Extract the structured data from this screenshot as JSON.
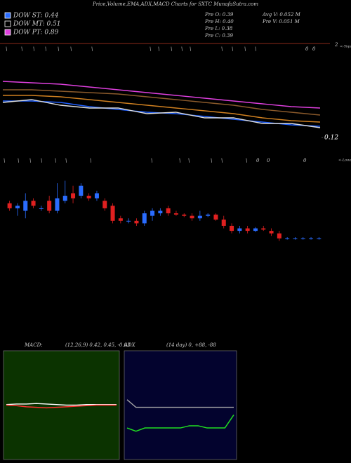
{
  "header": {
    "title": "Price,Volume,EMA,ADX,MACD Charts for SXTC MunafaSutra.com",
    "legend": [
      {
        "label": "DOW ST: 0.44",
        "color": "#2a6cff"
      },
      {
        "label": "DOW MT: 0.51",
        "color": "#000000"
      },
      {
        "label": "DOW PT: 0.89",
        "color": "#e040e0"
      }
    ],
    "stats": [
      "Pre O: 0.39",
      "Pre H: 0.40",
      "Pre L: 0.38",
      "Pre C: 0.39",
      "Avg V: 0.052 M",
      "Pre V: 0.051 M"
    ],
    "top_signals": [
      "\\",
      "\\",
      "\\",
      "\\",
      "\\",
      "\\",
      "\\",
      "\\",
      "\\",
      "\\",
      "\\",
      "\\",
      "\\",
      "\\",
      "\\",
      "\\",
      "0",
      "0"
    ],
    "top_tag": "2",
    "top_label": "<-Tops",
    "low_signals": [
      "\\",
      "\\",
      "\\",
      "\\",
      "\\",
      "\\",
      "\\",
      "\\",
      "\\",
      "\\",
      "\\",
      "\\",
      "\\",
      "0",
      "0",
      "0"
    ],
    "low_label": "<-Lows"
  },
  "chart_data": [
    {
      "type": "line",
      "ylim": [
        0.1,
        0.6
      ],
      "yticks": [
        0.12
      ],
      "series": [
        {
          "color": "#e040e0",
          "values": [
            0.52,
            0.51,
            0.5,
            0.48,
            0.46,
            0.44,
            0.42,
            0.4,
            0.38,
            0.36,
            0.34,
            0.33
          ]
        },
        {
          "color": "#8b5a2b",
          "values": [
            0.46,
            0.46,
            0.45,
            0.44,
            0.43,
            0.41,
            0.39,
            0.37,
            0.35,
            0.32,
            0.3,
            0.28
          ]
        },
        {
          "color": "#d08020",
          "values": [
            0.42,
            0.42,
            0.41,
            0.39,
            0.37,
            0.35,
            0.33,
            0.31,
            0.29,
            0.26,
            0.24,
            0.23
          ]
        },
        {
          "color": "#2060ff",
          "values": [
            0.38,
            0.38,
            0.37,
            0.34,
            0.32,
            0.3,
            0.29,
            0.27,
            0.25,
            0.23,
            0.21,
            0.2
          ]
        },
        {
          "color": "#dddddd",
          "values": [
            0.37,
            0.39,
            0.35,
            0.33,
            0.33,
            0.29,
            0.3,
            0.26,
            0.26,
            0.22,
            0.22,
            0.19
          ]
        }
      ]
    },
    {
      "type": "candlestick",
      "ylim": [
        0.3,
        0.7
      ],
      "up_color": "#2a6cff",
      "down_color": "#e02020",
      "open": [
        0.53,
        0.51,
        0.5,
        0.54,
        0.51,
        0.54,
        0.5,
        0.54,
        0.57,
        0.56,
        0.56,
        0.55,
        0.54,
        0.52,
        0.47,
        0.46,
        0.46,
        0.45,
        0.48,
        0.49,
        0.51,
        0.49,
        0.485,
        0.48,
        0.47,
        0.48,
        0.485,
        0.465,
        0.44,
        0.42,
        0.43,
        0.42,
        0.43,
        0.42,
        0.41,
        0.39,
        0.39,
        0.39,
        0.39,
        0.39
      ],
      "high": [
        0.54,
        0.53,
        0.57,
        0.55,
        0.52,
        0.56,
        0.61,
        0.62,
        0.6,
        0.61,
        0.57,
        0.58,
        0.55,
        0.53,
        0.48,
        0.47,
        0.47,
        0.5,
        0.51,
        0.51,
        0.52,
        0.5,
        0.49,
        0.49,
        0.5,
        0.49,
        0.49,
        0.48,
        0.45,
        0.44,
        0.44,
        0.435,
        0.44,
        0.43,
        0.42,
        0.395,
        0.395,
        0.395,
        0.395,
        0.395
      ],
      "low": [
        0.5,
        0.48,
        0.47,
        0.51,
        0.5,
        0.49,
        0.49,
        0.53,
        0.53,
        0.55,
        0.54,
        0.54,
        0.5,
        0.45,
        0.45,
        0.45,
        0.44,
        0.44,
        0.46,
        0.48,
        0.48,
        0.48,
        0.475,
        0.46,
        0.46,
        0.475,
        0.46,
        0.43,
        0.41,
        0.41,
        0.41,
        0.415,
        0.42,
        0.4,
        0.38,
        0.385,
        0.385,
        0.385,
        0.385,
        0.385
      ],
      "close": [
        0.51,
        0.52,
        0.54,
        0.52,
        0.51,
        0.5,
        0.55,
        0.56,
        0.55,
        0.6,
        0.55,
        0.57,
        0.51,
        0.46,
        0.46,
        0.46,
        0.45,
        0.49,
        0.5,
        0.5,
        0.49,
        0.485,
        0.48,
        0.47,
        0.48,
        0.485,
        0.465,
        0.44,
        0.42,
        0.43,
        0.42,
        0.43,
        0.425,
        0.41,
        0.39,
        0.39,
        0.39,
        0.39,
        0.39,
        0.39
      ]
    },
    {
      "type": "line",
      "title": "MACD:",
      "subtitle": "(12,26,9) 0.42, 0.45, -0.03",
      "ylim": [
        -1,
        1
      ],
      "background": "#0b3300",
      "series": [
        {
          "color": "#ffffff",
          "values": [
            0.01,
            0.02,
            0.02,
            0.03,
            0.02,
            0.01,
            0.0,
            0.0,
            0.01,
            0.01,
            0.01,
            0.01
          ]
        },
        {
          "color": "#ff3030",
          "values": [
            0.0,
            -0.01,
            -0.03,
            -0.04,
            -0.05,
            -0.04,
            -0.03,
            -0.02,
            -0.01,
            0.0,
            0.0,
            0.0
          ]
        }
      ]
    },
    {
      "type": "line",
      "title": "ADX",
      "subtitle": "(14 day) 0, +88, -88",
      "ylim": [
        0,
        100
      ],
      "background": "#03032e",
      "series": [
        {
          "color": "#aaaaaa",
          "values": [
            55,
            48,
            48,
            48,
            48,
            48,
            48,
            48,
            48,
            48,
            48,
            48,
            48
          ]
        },
        {
          "color": "#20e020",
          "values": [
            29,
            26,
            29,
            29,
            29,
            29,
            29,
            31,
            31,
            29,
            29,
            29,
            41
          ]
        }
      ]
    }
  ]
}
